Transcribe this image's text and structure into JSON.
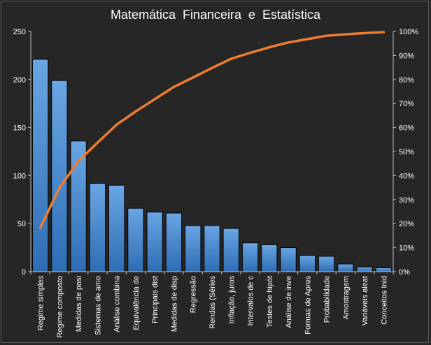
{
  "chart_data": {
    "type": "pareto",
    "title": "Matemática  Financeira  e  Estatística",
    "xlabel": "",
    "ylabel": "",
    "ylim": [
      0,
      250
    ],
    "y_ticks": [
      "0",
      "50",
      "100",
      "150",
      "200",
      "250"
    ],
    "y2lim": [
      0,
      100
    ],
    "y2_ticks": [
      "0%",
      "10%",
      "20%",
      "30%",
      "40%",
      "50%",
      "60%",
      "70%",
      "80%",
      "90%",
      "100%"
    ],
    "grid": false,
    "legend": "none",
    "categories": [
      "Regime simples",
      "Regime composto",
      "Medidas de posi",
      "Sistemas de amo",
      "Análise combina",
      "Equivalência de",
      "Principais dist",
      "Medidas de disp",
      "Regressão",
      "Rendas (Séries",
      "Inflação, juros",
      "Intervalos de c",
      "Testes de hipót",
      "Análise de inve",
      "Formas de Apres",
      "Probabilidade",
      "Amostragem",
      "Variáveis aleat",
      "Conceitos Inid"
    ],
    "series": [
      {
        "type": "bar",
        "values": [
          221,
          199,
          136,
          92,
          90,
          66,
          62,
          61,
          48,
          48,
          45,
          30,
          28,
          25,
          17,
          16,
          8,
          5,
          4
        ]
      },
      {
        "type": "line",
        "axis": "secondary",
        "values": [
          18.3,
          34.8,
          46.1,
          53.7,
          61.2,
          66.7,
          71.8,
          76.9,
          80.8,
          84.8,
          88.6,
          91.1,
          93.4,
          95.4,
          96.8,
          98.2,
          98.8,
          99.3,
          99.7
        ]
      }
    ],
    "colors": {
      "background": "#262626",
      "bar_fill_top": "#6aa6e4",
      "bar_fill_bottom": "#2e6db4",
      "bar_stroke": "#000000",
      "line": "#ed7d31",
      "axis": "#bfbfbf",
      "text": "#ffffff"
    }
  }
}
